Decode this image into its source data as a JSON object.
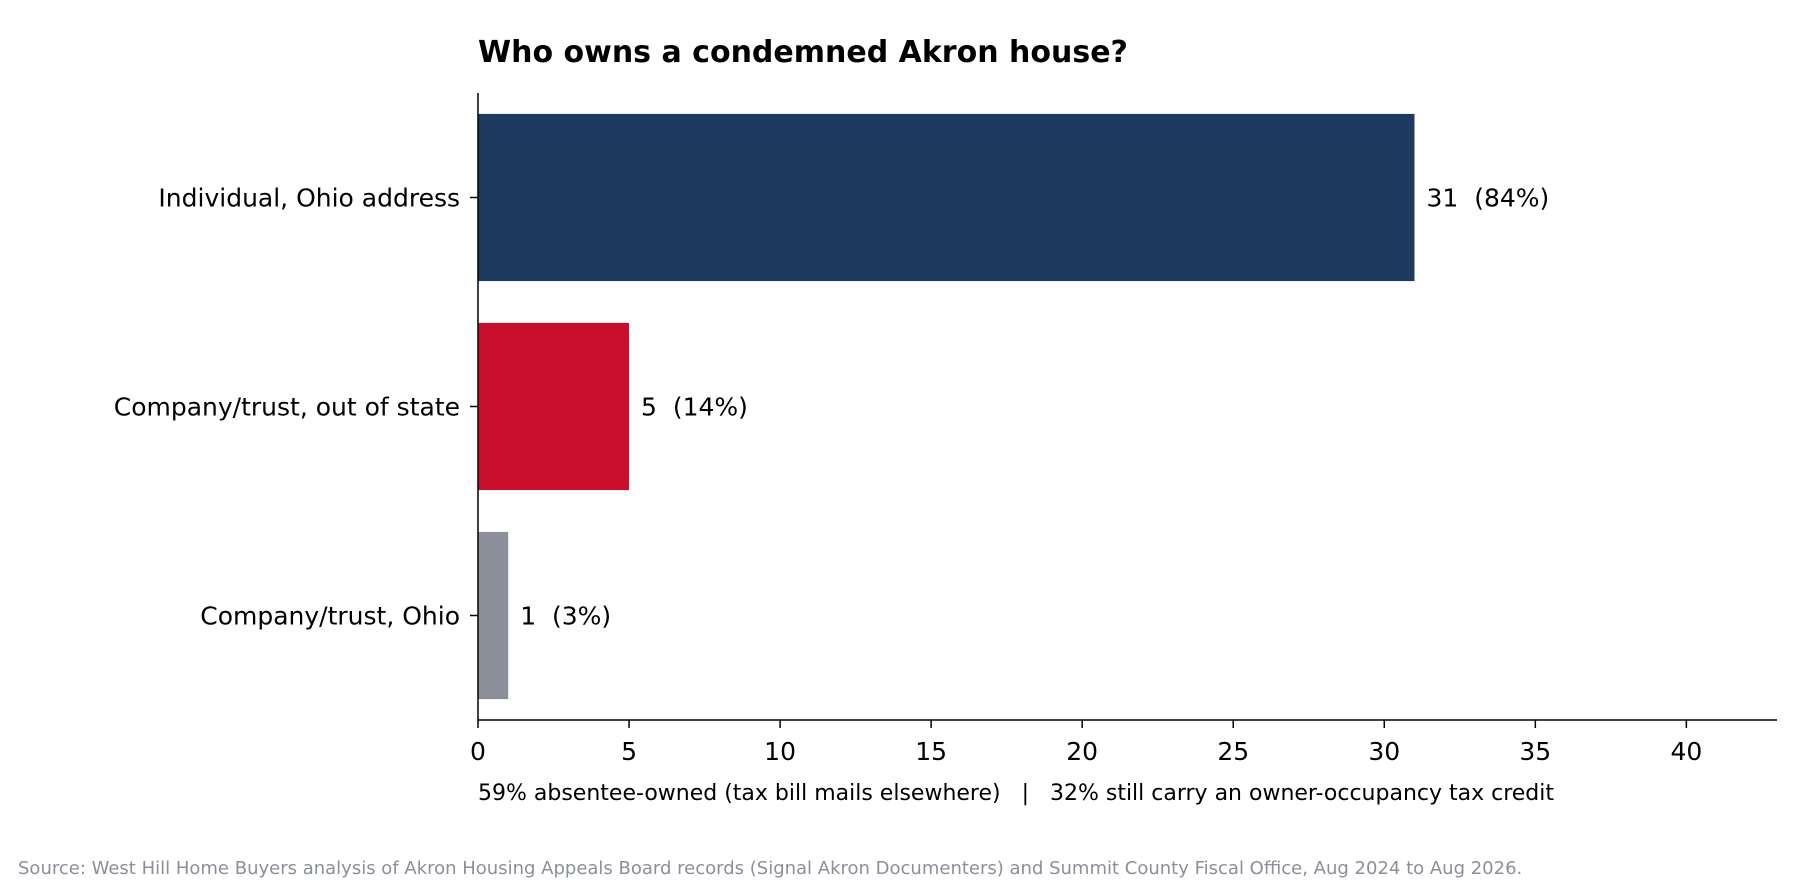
{
  "chart_data": {
    "type": "bar",
    "orientation": "horizontal",
    "title": "Who owns a condemned Akron house?",
    "xlabel": "",
    "ylabel": "",
    "categories": [
      "Individual, Ohio address",
      "Company/trust, out of state",
      "Company/trust, Ohio"
    ],
    "values": [
      31,
      5,
      1
    ],
    "value_labels": [
      "31  (84%)",
      "5  (14%)",
      "1  (3%)"
    ],
    "colors": [
      "#1f3a5f",
      "#c8102e",
      "#8a8f99"
    ],
    "xlim": [
      0,
      43
    ],
    "x_ticks": [
      0,
      5,
      10,
      15,
      20,
      25,
      30,
      35,
      40
    ],
    "grid": false,
    "legend": "none",
    "note": "59% absentee-owned (tax bill mails elsewhere)   |   32% still carry an owner-occupancy tax credit",
    "source": "Source: West Hill Home Buyers analysis of Akron Housing Appeals Board records (Signal Akron Documenters) and Summit County Fiscal Office, Aug 2024 to Aug 2026."
  }
}
